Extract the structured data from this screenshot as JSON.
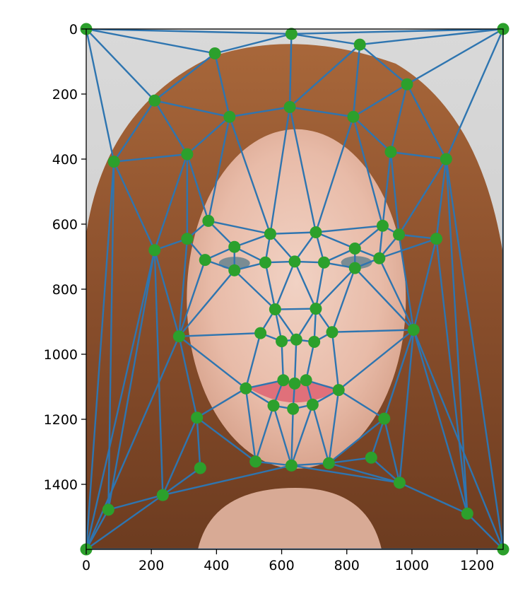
{
  "chart_data": {
    "type": "scatter",
    "title": "",
    "xlabel": "",
    "ylabel": "",
    "xlim": [
      0,
      1280
    ],
    "ylim": [
      1600,
      0
    ],
    "y_inverted": true,
    "grid": false,
    "background": "portrait photograph",
    "xticks": [
      0,
      200,
      400,
      600,
      800,
      1000,
      1200
    ],
    "yticks": [
      0,
      200,
      400,
      600,
      800,
      1000,
      1200,
      1400
    ],
    "colors": {
      "edges": "#2e75b0",
      "points": "#2ca02c"
    },
    "points": [
      [
        0,
        0
      ],
      [
        630,
        15
      ],
      [
        1280,
        0
      ],
      [
        395,
        75
      ],
      [
        840,
        48
      ],
      [
        210,
        220
      ],
      [
        985,
        170
      ],
      [
        440,
        270
      ],
      [
        625,
        240
      ],
      [
        820,
        270
      ],
      [
        85,
        408
      ],
      [
        310,
        385
      ],
      [
        935,
        378
      ],
      [
        1105,
        400
      ],
      [
        375,
        590
      ],
      [
        565,
        630
      ],
      [
        705,
        625
      ],
      [
        910,
        605
      ],
      [
        210,
        680
      ],
      [
        310,
        645
      ],
      [
        455,
        670
      ],
      [
        825,
        675
      ],
      [
        960,
        632
      ],
      [
        1075,
        645
      ],
      [
        365,
        710
      ],
      [
        550,
        718
      ],
      [
        640,
        715
      ],
      [
        730,
        718
      ],
      [
        900,
        705
      ],
      [
        455,
        742
      ],
      [
        825,
        735
      ],
      [
        580,
        862
      ],
      [
        705,
        860
      ],
      [
        285,
        945
      ],
      [
        535,
        935
      ],
      [
        600,
        960
      ],
      [
        645,
        955
      ],
      [
        700,
        962
      ],
      [
        755,
        932
      ],
      [
        1005,
        925
      ],
      [
        490,
        1105
      ],
      [
        605,
        1080
      ],
      [
        640,
        1090
      ],
      [
        675,
        1080
      ],
      [
        775,
        1110
      ],
      [
        575,
        1158
      ],
      [
        635,
        1168
      ],
      [
        695,
        1155
      ],
      [
        340,
        1195
      ],
      [
        915,
        1198
      ],
      [
        350,
        1350
      ],
      [
        520,
        1330
      ],
      [
        630,
        1342
      ],
      [
        745,
        1335
      ],
      [
        875,
        1318
      ],
      [
        235,
        1433
      ],
      [
        962,
        1395
      ],
      [
        68,
        1478
      ],
      [
        1170,
        1490
      ],
      [
        0,
        1600
      ],
      [
        1280,
        1600
      ]
    ],
    "edges": [
      [
        0,
        1
      ],
      [
        1,
        2
      ],
      [
        0,
        3
      ],
      [
        3,
        1
      ],
      [
        1,
        4
      ],
      [
        4,
        2
      ],
      [
        0,
        5
      ],
      [
        3,
        5
      ],
      [
        2,
        6
      ],
      [
        4,
        6
      ],
      [
        3,
        7
      ],
      [
        5,
        7
      ],
      [
        7,
        8
      ],
      [
        1,
        8
      ],
      [
        8,
        4
      ],
      [
        8,
        9
      ],
      [
        4,
        9
      ],
      [
        9,
        6
      ],
      [
        0,
        10
      ],
      [
        5,
        10
      ],
      [
        5,
        11
      ],
      [
        10,
        11
      ],
      [
        7,
        11
      ],
      [
        6,
        12
      ],
      [
        9,
        12
      ],
      [
        6,
        13
      ],
      [
        12,
        13
      ],
      [
        2,
        13
      ],
      [
        11,
        14
      ],
      [
        7,
        14
      ],
      [
        7,
        15
      ],
      [
        8,
        15
      ],
      [
        14,
        15
      ],
      [
        8,
        16
      ],
      [
        9,
        16
      ],
      [
        15,
        16
      ],
      [
        9,
        17
      ],
      [
        12,
        17
      ],
      [
        16,
        17
      ],
      [
        10,
        18
      ],
      [
        11,
        18
      ],
      [
        11,
        19
      ],
      [
        18,
        19
      ],
      [
        14,
        19
      ],
      [
        14,
        20
      ],
      [
        15,
        20
      ],
      [
        17,
        21
      ],
      [
        16,
        21
      ],
      [
        12,
        22
      ],
      [
        17,
        22
      ],
      [
        13,
        22
      ],
      [
        13,
        23
      ],
      [
        22,
        23
      ],
      [
        19,
        24
      ],
      [
        24,
        20
      ],
      [
        20,
        25
      ],
      [
        15,
        25
      ],
      [
        25,
        26
      ],
      [
        15,
        26
      ],
      [
        16,
        26
      ],
      [
        26,
        27
      ],
      [
        16,
        27
      ],
      [
        27,
        21
      ],
      [
        21,
        28
      ],
      [
        17,
        28
      ],
      [
        28,
        22
      ],
      [
        23,
        28
      ],
      [
        24,
        29
      ],
      [
        20,
        29
      ],
      [
        29,
        25
      ],
      [
        21,
        30
      ],
      [
        28,
        30
      ],
      [
        27,
        30
      ],
      [
        25,
        31
      ],
      [
        29,
        31
      ],
      [
        26,
        31
      ],
      [
        26,
        32
      ],
      [
        27,
        32
      ],
      [
        31,
        32
      ],
      [
        30,
        32
      ],
      [
        18,
        33
      ],
      [
        19,
        33
      ],
      [
        24,
        33
      ],
      [
        29,
        33
      ],
      [
        31,
        34
      ],
      [
        33,
        34
      ],
      [
        31,
        35
      ],
      [
        34,
        35
      ],
      [
        35,
        36
      ],
      [
        31,
        36
      ],
      [
        32,
        36
      ],
      [
        36,
        37
      ],
      [
        32,
        37
      ],
      [
        37,
        38
      ],
      [
        32,
        38
      ],
      [
        30,
        38
      ],
      [
        28,
        39
      ],
      [
        30,
        39
      ],
      [
        38,
        39
      ],
      [
        23,
        39
      ],
      [
        22,
        39
      ],
      [
        33,
        40
      ],
      [
        34,
        40
      ],
      [
        35,
        41
      ],
      [
        40,
        41
      ],
      [
        36,
        42
      ],
      [
        41,
        42
      ],
      [
        42,
        43
      ],
      [
        37,
        43
      ],
      [
        38,
        44
      ],
      [
        43,
        44
      ],
      [
        39,
        44
      ],
      [
        40,
        45
      ],
      [
        41,
        45
      ],
      [
        45,
        46
      ],
      [
        42,
        46
      ],
      [
        46,
        47
      ],
      [
        43,
        47
      ],
      [
        47,
        44
      ],
      [
        33,
        48
      ],
      [
        40,
        48
      ],
      [
        39,
        49
      ],
      [
        44,
        49
      ],
      [
        48,
        50
      ],
      [
        48,
        51
      ],
      [
        40,
        51
      ],
      [
        45,
        51
      ],
      [
        51,
        52
      ],
      [
        46,
        52
      ],
      [
        45,
        52
      ],
      [
        47,
        52
      ],
      [
        52,
        53
      ],
      [
        47,
        53
      ],
      [
        44,
        53
      ],
      [
        53,
        54
      ],
      [
        49,
        54
      ],
      [
        49,
        53
      ],
      [
        18,
        55
      ],
      [
        48,
        55
      ],
      [
        50,
        55
      ],
      [
        55,
        52
      ],
      [
        49,
        56
      ],
      [
        54,
        56
      ],
      [
        53,
        56
      ],
      [
        39,
        56
      ],
      [
        10,
        57
      ],
      [
        18,
        57
      ],
      [
        55,
        57
      ],
      [
        23,
        58
      ],
      [
        39,
        58
      ],
      [
        56,
        58
      ],
      [
        13,
        58
      ],
      [
        57,
        59
      ],
      [
        10,
        59
      ],
      [
        55,
        59
      ],
      [
        18,
        59
      ],
      [
        33,
        59
      ],
      [
        58,
        60
      ],
      [
        13,
        60
      ],
      [
        2,
        60
      ],
      [
        39,
        60
      ],
      [
        59,
        60
      ],
      [
        56,
        52
      ]
    ]
  }
}
